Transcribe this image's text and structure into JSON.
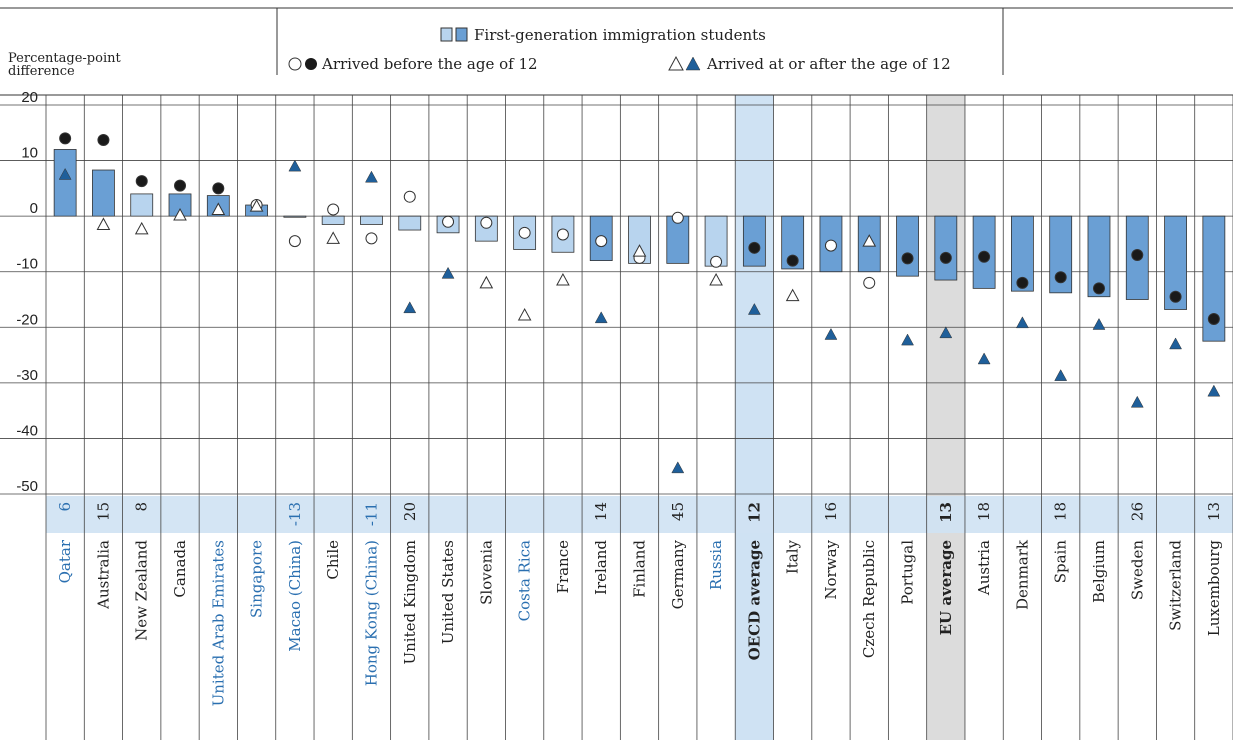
{
  "chart_data": {
    "type": "bar",
    "y_label": "Percentage-point difference",
    "categories": [
      "Qatar",
      "Australia",
      "New Zealand",
      "Canada",
      "United Arab Emirates",
      "Singapore",
      "Macao (China)",
      "Chile",
      "Hong Kong (China)",
      "United Kingdom",
      "United States",
      "Slovenia",
      "Costa Rica",
      "France",
      "Ireland",
      "Finland",
      "Germany",
      "Russia",
      "OECD average",
      "Italy",
      "Norway",
      "Czech Republic",
      "Portugal",
      "EU average",
      "Austria",
      "Denmark",
      "Spain",
      "Belgium",
      "Sweden",
      "Switzerland",
      "Luxembourg"
    ],
    "label_colors": [
      "#2a6fb0",
      "#222",
      "#222",
      "#222",
      "#2a6fb0",
      "#2a6fb0",
      "#2a6fb0",
      "#222",
      "#2a6fb0",
      "#222",
      "#222",
      "#222",
      "#2a6fb0",
      "#222",
      "#222",
      "#222",
      "#222",
      "#2a6fb0",
      "#222",
      "#222",
      "#222",
      "#222",
      "#222",
      "#222",
      "#222",
      "#222",
      "#222",
      "#222",
      "#222",
      "#222",
      "#222"
    ],
    "bold_labels": [
      false,
      false,
      false,
      false,
      false,
      false,
      false,
      false,
      false,
      false,
      false,
      false,
      false,
      false,
      false,
      false,
      false,
      false,
      true,
      false,
      false,
      false,
      false,
      true,
      false,
      false,
      false,
      false,
      false,
      false,
      false
    ],
    "column_backgrounds": [
      null,
      null,
      null,
      null,
      null,
      null,
      null,
      null,
      null,
      null,
      null,
      null,
      null,
      null,
      null,
      null,
      null,
      null,
      "#cfe2f3",
      null,
      null,
      null,
      null,
      "#dcdcdc",
      null,
      null,
      null,
      null,
      null,
      null,
      null
    ],
    "series": [
      {
        "name": "First-generation immigration students",
        "mark": "bar",
        "color": "#6a9fd4",
        "light_color": "#b8d4ee",
        "values": [
          12,
          8.3,
          4,
          4,
          3.7,
          2,
          -0.2,
          -1.5,
          -1.5,
          -2.5,
          -3,
          -4.5,
          -6,
          -6.5,
          -8,
          -8.5,
          -8.5,
          -9,
          -9,
          -9.5,
          -10,
          -10,
          -10.8,
          -11.5,
          -13,
          -13.5,
          -13.8,
          -14.5,
          -15,
          -16.8,
          -22.5
        ],
        "significant": [
          true,
          true,
          false,
          true,
          true,
          true,
          false,
          false,
          false,
          false,
          false,
          false,
          false,
          false,
          true,
          false,
          true,
          false,
          true,
          true,
          true,
          true,
          true,
          true,
          true,
          true,
          true,
          true,
          true,
          true,
          true
        ]
      },
      {
        "name": "Arrived before the age of 12",
        "mark": "circle",
        "color": "#1a1a1a",
        "values": [
          14,
          13.7,
          6.3,
          5.5,
          5,
          2,
          -4.5,
          1.2,
          -4,
          3.5,
          -1,
          -1.2,
          -3,
          -3.3,
          -4.5,
          -7.5,
          -0.3,
          -8.2,
          -5.7,
          -8,
          -5.3,
          -12,
          -7.6,
          -7.5,
          -7.3,
          -12,
          -11,
          -13,
          -7,
          -14.5,
          -18.5
        ],
        "significant": [
          true,
          true,
          true,
          true,
          true,
          false,
          false,
          false,
          false,
          false,
          false,
          false,
          false,
          false,
          false,
          false,
          false,
          false,
          true,
          true,
          false,
          false,
          true,
          true,
          true,
          true,
          true,
          true,
          true,
          true,
          true
        ]
      },
      {
        "name": "Arrived at or after the age of 12",
        "mark": "triangle",
        "color": "#1f5f9a",
        "values": [
          7.5,
          -1.5,
          -2.3,
          0.2,
          1.2,
          1.8,
          9,
          -4,
          7,
          -16.5,
          -10.3,
          -12,
          -17.8,
          -11.5,
          -18.3,
          -6.3,
          -45.3,
          -11.5,
          -16.8,
          -14.3,
          -21.3,
          -4.5,
          -22.3,
          -21,
          -25.7,
          -19.2,
          -28.7,
          -19.5,
          -33.5,
          -23,
          -31.5
        ],
        "significant": [
          true,
          false,
          false,
          false,
          false,
          false,
          true,
          false,
          true,
          true,
          true,
          false,
          false,
          false,
          true,
          false,
          true,
          false,
          true,
          false,
          true,
          false,
          true,
          true,
          true,
          true,
          true,
          true,
          true,
          true,
          true
        ]
      }
    ],
    "difference_row": [
      6,
      15,
      8,
      null,
      null,
      null,
      -13,
      null,
      -11,
      20,
      null,
      null,
      null,
      null,
      14,
      null,
      45,
      null,
      12,
      null,
      16,
      null,
      null,
      13,
      18,
      null,
      18,
      null,
      26,
      null,
      13
    ],
    "ylim": [
      -50,
      20
    ],
    "yticks": [
      20,
      10,
      0,
      -10,
      -20,
      -30,
      -40,
      -50
    ],
    "grid": true
  }
}
